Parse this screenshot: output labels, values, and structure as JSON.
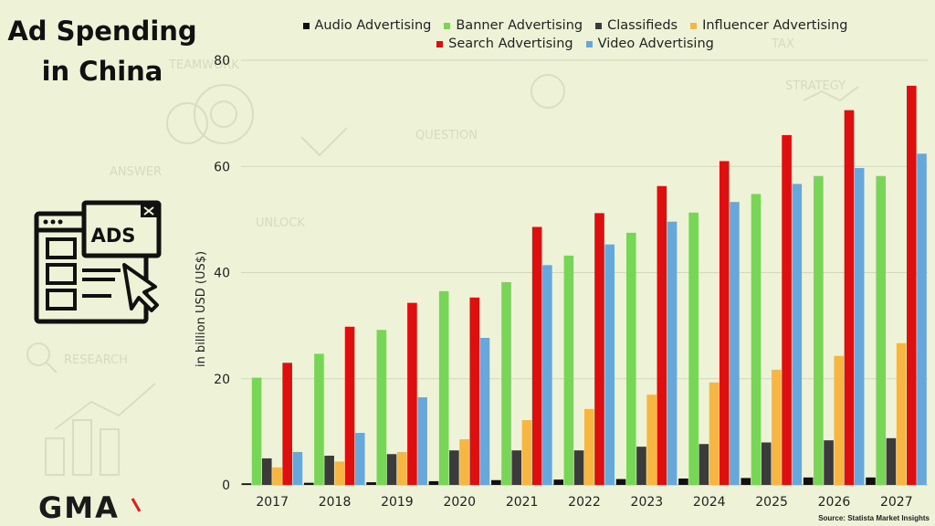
{
  "page": {
    "title_line1": "Ad Spending",
    "title_line2": "in China",
    "icon": "ads-browser-cursor-icon",
    "icon_text": "ADS",
    "logo_text": "GMA",
    "source": "Source: Statista Market Insights",
    "colors": {
      "background": "#eef2d6",
      "logo_accent": "#e31b1b"
    }
  },
  "chart_data": {
    "type": "bar",
    "title": "",
    "xlabel": "",
    "ylabel": "in billion USD (US$)",
    "ylim": [
      0,
      80
    ],
    "yticks": [
      0,
      20,
      40,
      60,
      80
    ],
    "grid": true,
    "legend_position": "top",
    "categories": [
      "2017",
      "2018",
      "2019",
      "2020",
      "2021",
      "2022",
      "2023",
      "2024",
      "2025",
      "2026",
      "2027"
    ],
    "series": [
      {
        "name": "Audio Advertising",
        "color": "#111111",
        "values": [
          0.3,
          0.4,
          0.5,
          0.7,
          0.9,
          1.0,
          1.1,
          1.2,
          1.3,
          1.4,
          1.4
        ]
      },
      {
        "name": "Banner Advertising",
        "color": "#77d655",
        "values": [
          20.2,
          24.7,
          29.2,
          36.5,
          38.2,
          43.2,
          47.5,
          51.3,
          54.8,
          58.2,
          58.2
        ]
      },
      {
        "name": "Classifieds",
        "color": "#3b3b3b",
        "values": [
          5.0,
          5.5,
          5.8,
          6.5,
          6.5,
          6.5,
          7.2,
          7.7,
          8.0,
          8.4,
          8.8
        ]
      },
      {
        "name": "Influencer Advertising",
        "color": "#f7b642",
        "values": [
          3.3,
          4.4,
          6.2,
          8.6,
          12.2,
          14.3,
          17.0,
          19.3,
          21.7,
          24.3,
          26.7
        ]
      },
      {
        "name": "Search Advertising",
        "color": "#dd0f0f",
        "values": [
          23.0,
          29.8,
          34.3,
          35.3,
          48.6,
          51.2,
          56.3,
          61.0,
          65.9,
          70.6,
          75.2
        ]
      },
      {
        "name": "Video Advertising",
        "color": "#67a8dc",
        "values": [
          6.2,
          9.8,
          16.5,
          27.7,
          41.4,
          45.3,
          49.6,
          53.3,
          56.7,
          59.7,
          62.4
        ]
      }
    ]
  }
}
